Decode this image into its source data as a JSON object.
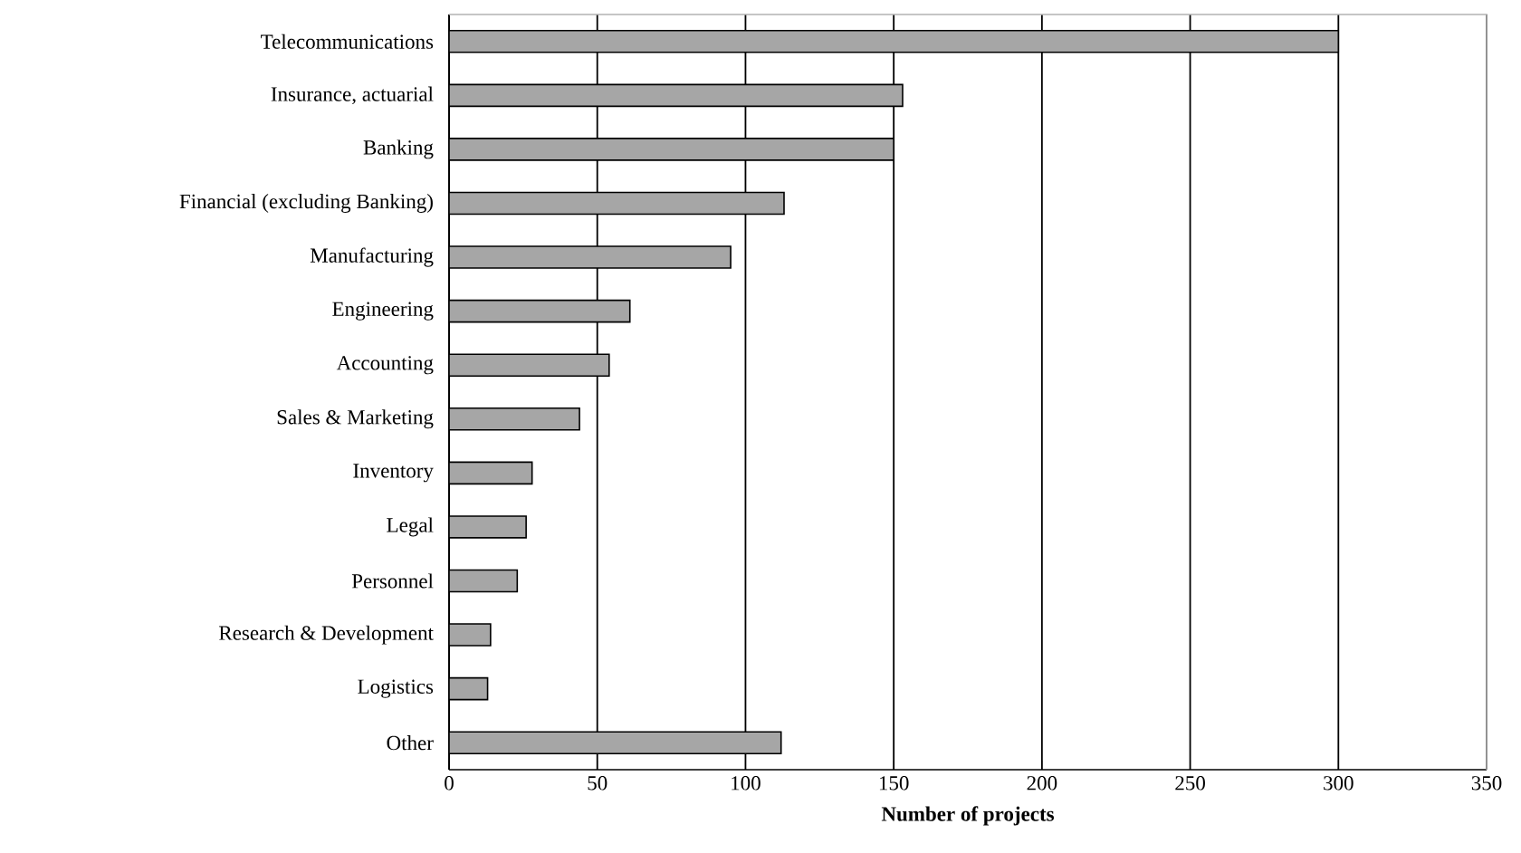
{
  "chart_data": {
    "type": "bar",
    "orientation": "horizontal",
    "xlabel": "Number of projects",
    "categories": [
      "Telecommunications",
      "Insurance, actuarial",
      "Banking",
      "Financial (excluding Banking)",
      "Manufacturing",
      "Engineering",
      "Accounting",
      "Sales & Marketing",
      "Inventory",
      "Legal",
      "Personnel",
      "Research & Development",
      "Logistics",
      "Other"
    ],
    "values": [
      300,
      153,
      150,
      113,
      95,
      61,
      54,
      44,
      28,
      26,
      23,
      14,
      13,
      112
    ],
    "color": "#a6a6a6",
    "xlim": [
      0,
      350
    ],
    "xticks": [
      0,
      50,
      100,
      150,
      200,
      250,
      300,
      350
    ],
    "grid": "x"
  }
}
